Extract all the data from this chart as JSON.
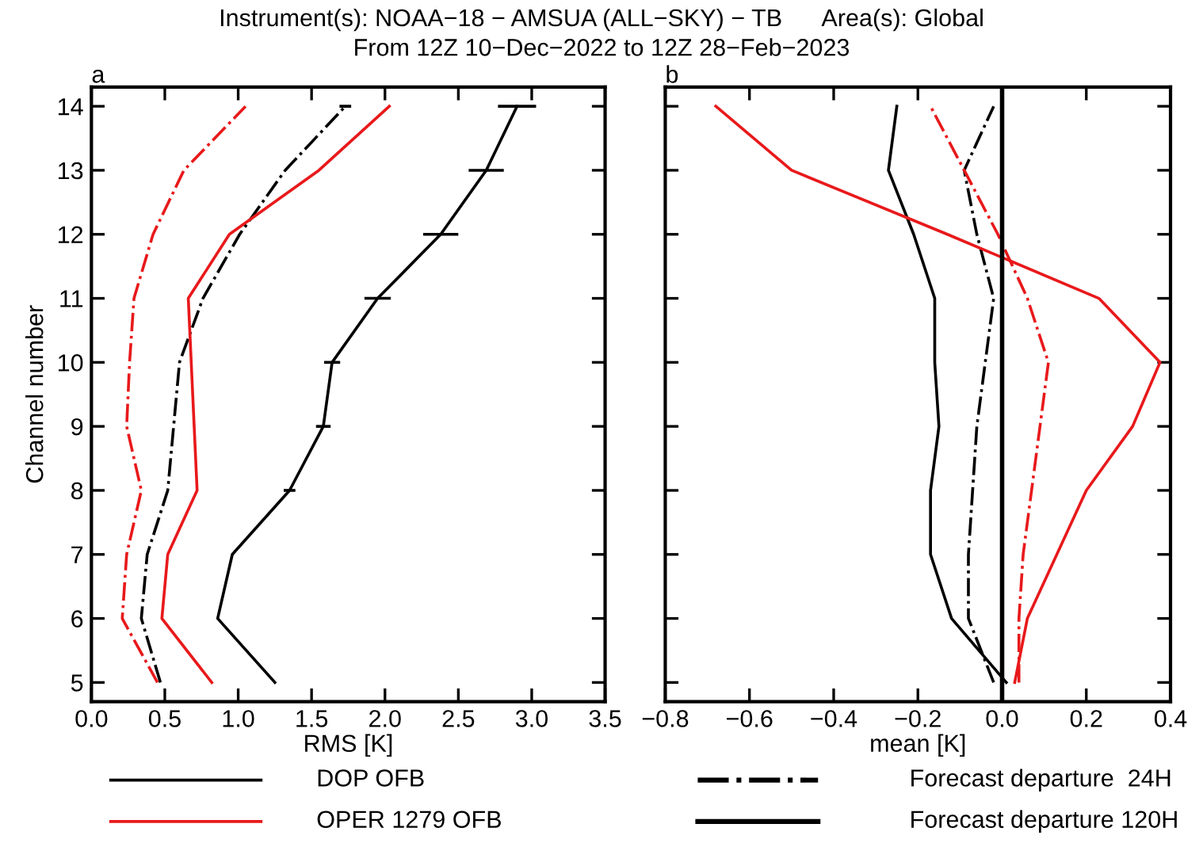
{
  "chart_data": [
    {
      "type": "line",
      "title": "Instrument(s): NOAA−18 − AMSUA (ALL−SKY) − TB      Area(s): Global\nFrom 12Z 10−Dec−2022 to 12Z 28−Feb−2023",
      "orientation": "horizontal",
      "xlabel": "RMS [K]",
      "ylabel": "Channel number",
      "annotations": [
        "a",
        "DOP OFB",
        "OPER 1279 OFB"
      ],
      "x": [
        5,
        6,
        7,
        8,
        9,
        10,
        11,
        12,
        13,
        14
      ],
      "series": [
        {
          "color": "#000000",
          "line_style": "solid",
          "values": [
            1.25,
            0.86,
            0.96,
            1.35,
            1.58,
            1.64,
            1.95,
            2.38,
            2.69,
            2.9
          ],
          "errors": [
            null,
            null,
            null,
            0.03,
            0.04,
            0.045,
            0.08,
            0.11,
            0.11,
            0.12
          ]
        },
        {
          "color": "#000000",
          "line_style": "dashdot",
          "values": [
            0.47,
            0.34,
            0.38,
            0.52,
            0.56,
            0.6,
            0.76,
            1.01,
            1.32,
            1.73
          ],
          "errors": [
            null,
            null,
            null,
            null,
            null,
            null,
            null,
            null,
            null,
            0.03
          ]
        },
        {
          "color": "#e8191b",
          "line_style": "solid",
          "values": [
            0.82,
            0.48,
            0.52,
            0.72,
            0.7,
            0.68,
            0.66,
            0.94,
            1.55,
            2.03
          ]
        },
        {
          "color": "#e8191b",
          "line_style": "dashdot",
          "values": [
            0.45,
            0.21,
            0.24,
            0.34,
            0.24,
            0.26,
            0.29,
            0.42,
            0.63,
            1.05
          ]
        }
      ],
      "xlim": [
        0,
        3.5
      ],
      "xticks": [
        {
          "value": 0,
          "label": "0.0"
        },
        0.5,
        {
          "value": 1,
          "label": "1.0"
        },
        1.5,
        {
          "value": 2,
          "label": "2.0"
        },
        2.5,
        {
          "value": 3,
          "label": "3.0"
        },
        3.5
      ],
      "ylim": [
        4.7,
        14.3
      ],
      "yticks": [
        5,
        6,
        7,
        8,
        9,
        10,
        11,
        12,
        13,
        14
      ],
      "grid": false
    },
    {
      "type": "line",
      "orientation": "horizontal",
      "xlabel": "mean [K]",
      "tick_labels": "x",
      "annotations": [
        "b",
        "Forecast departure  24H",
        "Forecast departure 120H"
      ],
      "x": [
        5,
        6,
        7,
        8,
        9,
        10,
        11,
        12,
        13,
        14
      ],
      "series": [
        {
          "color": "#000000",
          "line_style": "solid",
          "values": [
            0.01,
            -0.12,
            -0.17,
            -0.17,
            -0.15,
            -0.16,
            -0.16,
            -0.21,
            -0.27,
            -0.25
          ]
        },
        {
          "color": "#000000",
          "line_style": "dashdot",
          "values": [
            -0.02,
            -0.08,
            -0.08,
            -0.07,
            -0.06,
            -0.04,
            -0.02,
            -0.06,
            -0.09,
            -0.02
          ]
        },
        {
          "color": "#e8191b",
          "line_style": "solid",
          "values": [
            0.03,
            0.06,
            0.13,
            0.2,
            0.31,
            0.375,
            0.23,
            -0.13,
            -0.5,
            -0.68
          ]
        },
        {
          "color": "#e8191b",
          "line_style": "dashdot",
          "values": [
            0.04,
            0.04,
            0.05,
            0.07,
            0.09,
            0.11,
            0.06,
            -0.01,
            -0.09,
            -0.17
          ]
        }
      ],
      "ref_lines": [
        {
          "axis": "x",
          "value": 0,
          "color": "#000000",
          "line_style": "solid"
        }
      ],
      "xlim": [
        -0.8,
        0.4
      ],
      "xticks": [
        {
          "value": -0.8,
          "label": "−0.8"
        },
        {
          "value": -0.6,
          "label": "−0.6"
        },
        {
          "value": -0.4,
          "label": "−0.4"
        },
        {
          "value": -0.2,
          "label": "−0.2"
        },
        {
          "value": 0,
          "label": "0.0"
        },
        0.2,
        0.4
      ],
      "ylim": [
        4.7,
        14.3
      ],
      "yticks": [
        5,
        6,
        7,
        8,
        9,
        10,
        11,
        12,
        13,
        14
      ],
      "grid": false
    }
  ]
}
